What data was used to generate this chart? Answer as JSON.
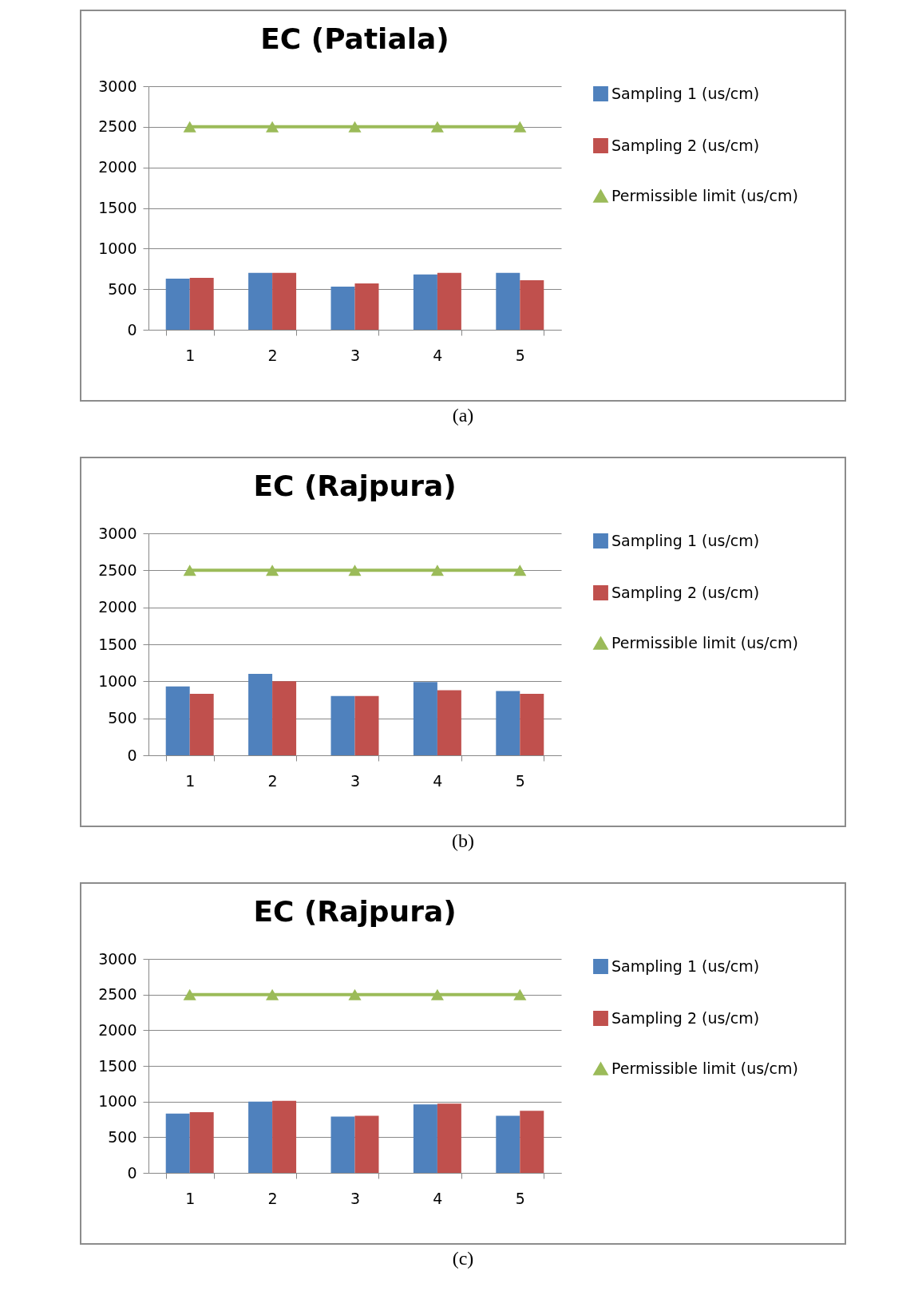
{
  "chart_data": [
    {
      "type": "bar",
      "title": "EC (Patiala)",
      "categories": [
        "1",
        "2",
        "3",
        "4",
        "5"
      ],
      "ylim": [
        0,
        3000
      ],
      "yticks": [
        0,
        500,
        1000,
        1500,
        2000,
        2500,
        3000
      ],
      "grid": "y",
      "legend": "right",
      "annotations": [
        "(a)"
      ],
      "series": [
        {
          "name": "Sampling 1 (us/cm)",
          "color": "#4f81bd",
          "values": [
            630,
            700,
            530,
            680,
            700
          ]
        },
        {
          "name": "Sampling 2 (us/cm)",
          "color": "#c0504d",
          "values": [
            640,
            700,
            570,
            700,
            610
          ]
        },
        {
          "name": "Permissible limit (us/cm)",
          "type": "line",
          "marker": "triangle",
          "color": "#9bbb59",
          "values": [
            2500,
            2500,
            2500,
            2500,
            2500
          ]
        }
      ]
    },
    {
      "type": "bar",
      "title": "EC (Rajpura)",
      "categories": [
        "1",
        "2",
        "3",
        "4",
        "5"
      ],
      "ylim": [
        0,
        3000
      ],
      "yticks": [
        0,
        500,
        1000,
        1500,
        2000,
        2500,
        3000
      ],
      "grid": "y",
      "legend": "right",
      "annotations": [
        "(b)"
      ],
      "series": [
        {
          "name": "Sampling 1 (us/cm)",
          "color": "#4f81bd",
          "values": [
            930,
            1100,
            800,
            990,
            870
          ]
        },
        {
          "name": "Sampling 2 (us/cm)",
          "color": "#c0504d",
          "values": [
            830,
            1000,
            800,
            880,
            830
          ]
        },
        {
          "name": "Permissible limit (us/cm)",
          "type": "line",
          "marker": "triangle",
          "color": "#9bbb59",
          "values": [
            2500,
            2500,
            2500,
            2500,
            2500
          ]
        }
      ]
    },
    {
      "type": "bar",
      "title": "EC (Rajpura)",
      "categories": [
        "1",
        "2",
        "3",
        "4",
        "5"
      ],
      "ylim": [
        0,
        3000
      ],
      "yticks": [
        0,
        500,
        1000,
        1500,
        2000,
        2500,
        3000
      ],
      "grid": "y",
      "legend": "right",
      "annotations": [
        "(c)"
      ],
      "series": [
        {
          "name": "Sampling 1 (us/cm)",
          "color": "#4f81bd",
          "values": [
            830,
            1000,
            790,
            960,
            800
          ]
        },
        {
          "name": "Sampling 2 (us/cm)",
          "color": "#c0504d",
          "values": [
            850,
            1010,
            800,
            970,
            870
          ]
        },
        {
          "name": "Permissible limit (us/cm)",
          "type": "line",
          "marker": "triangle",
          "color": "#9bbb59",
          "values": [
            2500,
            2500,
            2500,
            2500,
            2500
          ]
        }
      ]
    }
  ]
}
